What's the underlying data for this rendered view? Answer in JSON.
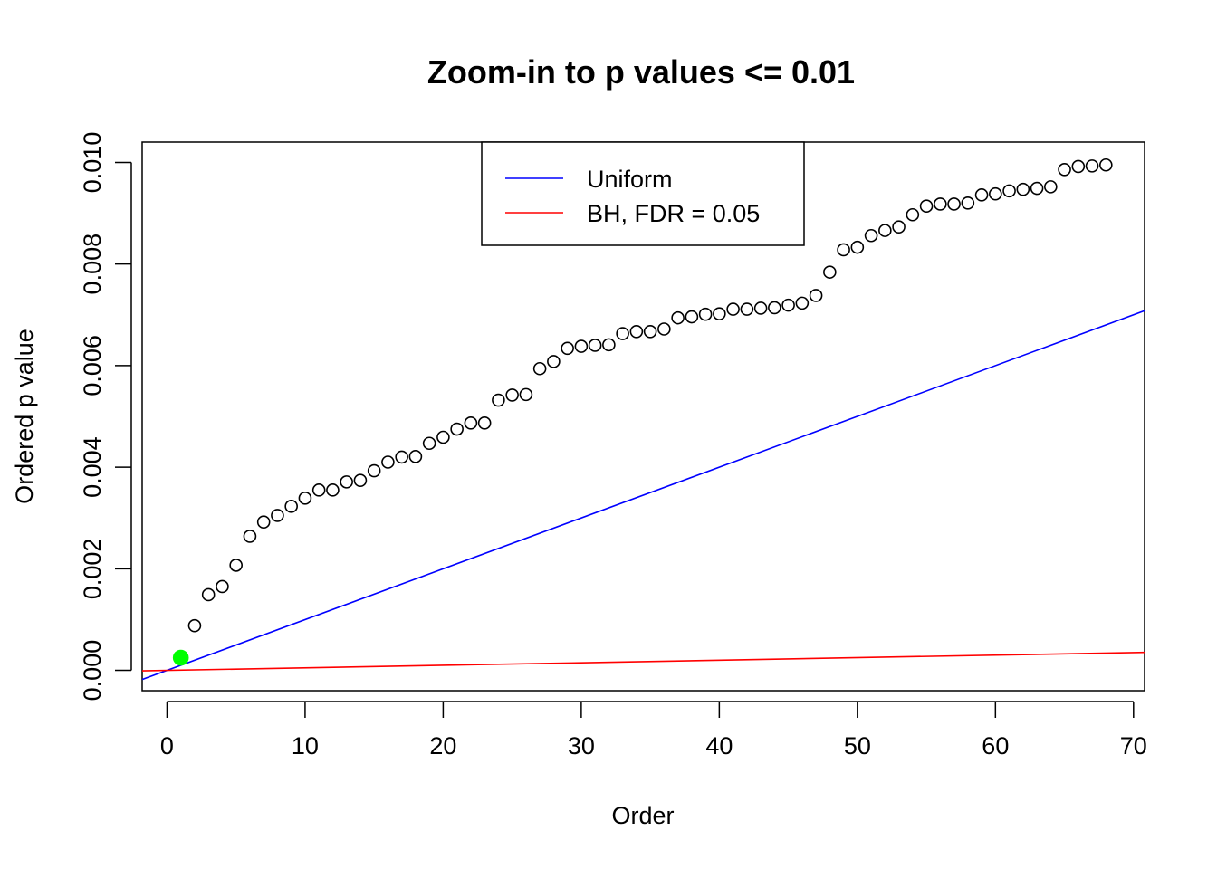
{
  "chart_data": {
    "type": "scatter",
    "title": "Zoom-in to p values <= 0.01",
    "xlabel": "Order",
    "ylabel": "Ordered p value",
    "xlim": [
      -1.8,
      70.8
    ],
    "ylim": [
      -0.0004,
      0.0104
    ],
    "x_ticks": [
      0,
      10,
      20,
      30,
      40,
      50,
      60,
      70
    ],
    "x_tick_labels": [
      "0",
      "10",
      "20",
      "30",
      "40",
      "50",
      "60",
      "70"
    ],
    "y_ticks": [
      0,
      0.002,
      0.004,
      0.006,
      0.008,
      0.01
    ],
    "y_tick_labels": [
      "0.000",
      "0.002",
      "0.004",
      "0.006",
      "0.008",
      "0.010"
    ],
    "grid": false,
    "legend_position": "top-center",
    "points": {
      "x": [
        1,
        2,
        3,
        4,
        5,
        6,
        7,
        8,
        9,
        10,
        11,
        12,
        13,
        14,
        15,
        16,
        17,
        18,
        19,
        20,
        21,
        22,
        23,
        24,
        25,
        26,
        27,
        28,
        29,
        30,
        31,
        32,
        33,
        34,
        35,
        36,
        37,
        38,
        39,
        40,
        41,
        42,
        43,
        44,
        45,
        46,
        47,
        48,
        49,
        50,
        51,
        52,
        53,
        54,
        55,
        56,
        57,
        58,
        59,
        60,
        61,
        62,
        63,
        64,
        65,
        66,
        67,
        68
      ],
      "y": [
        0.00025,
        0.00088,
        0.00149,
        0.00165,
        0.00207,
        0.00264,
        0.00292,
        0.00305,
        0.00323,
        0.00339,
        0.00355,
        0.00355,
        0.00371,
        0.00374,
        0.00393,
        0.0041,
        0.0042,
        0.00421,
        0.00447,
        0.00459,
        0.00475,
        0.00487,
        0.00487,
        0.00532,
        0.00542,
        0.00543,
        0.00594,
        0.00608,
        0.00634,
        0.00638,
        0.0064,
        0.00641,
        0.00663,
        0.00667,
        0.00667,
        0.00672,
        0.00694,
        0.00696,
        0.00701,
        0.00702,
        0.00711,
        0.00711,
        0.00713,
        0.00714,
        0.00719,
        0.00723,
        0.00738,
        0.00784,
        0.00828,
        0.00833,
        0.00856,
        0.00866,
        0.00873,
        0.00897,
        0.00914,
        0.00918,
        0.00918,
        0.0092,
        0.00936,
        0.00938,
        0.00944,
        0.00947,
        0.00949,
        0.00952,
        0.00986,
        0.00992,
        0.00993,
        0.00995
      ],
      "highlight_index": 0,
      "highlight_color": "#00ff00",
      "marker_color": "#000000"
    },
    "series": [
      {
        "name": "Uniform",
        "kind": "line",
        "slope": 0.0001,
        "intercept": 0,
        "color": "#0000ff"
      },
      {
        "name": "BH, FDR = 0.05",
        "kind": "line",
        "slope": 5e-06,
        "intercept": 0,
        "color": "#ff0000"
      }
    ]
  }
}
